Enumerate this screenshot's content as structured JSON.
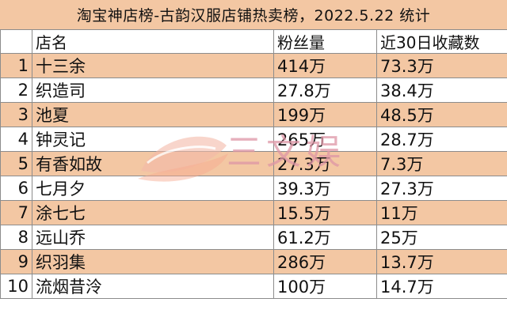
{
  "title": "淘宝神店榜-古韵汉服店铺热卖榜，2022.5.22 统计",
  "columns": [
    "",
    "店名",
    "粉丝量",
    "近30日收藏数"
  ],
  "rows": [
    {
      "rank": "1",
      "name": "十三余",
      "fans": "414万",
      "fav": "73.3万"
    },
    {
      "rank": "2",
      "name": "织造司",
      "fans": "27.8万",
      "fav": "38.4万"
    },
    {
      "rank": "3",
      "name": "池夏",
      "fans": "199万",
      "fav": "48.5万"
    },
    {
      "rank": "4",
      "name": "钟灵记",
      "fans": "265万",
      "fav": "28.7万"
    },
    {
      "rank": "5",
      "name": "有香如故",
      "fans": "27.3万",
      "fav": "7.3万"
    },
    {
      "rank": "6",
      "name": "七月夕",
      "fans": "39.3万",
      "fav": "27.3万"
    },
    {
      "rank": "7",
      "name": "涂七七",
      "fans": "15.5万",
      "fav": "11万"
    },
    {
      "rank": "8",
      "name": "远山乔",
      "fans": "61.2万",
      "fav": "25万"
    },
    {
      "rank": "9",
      "name": "织羽集",
      "fans": "286万",
      "fav": "13.7万"
    },
    {
      "rank": "10",
      "name": "流烟昔泠",
      "fans": "100万",
      "fav": "14.7万"
    }
  ],
  "watermark": {
    "text": "三文娱"
  },
  "colors": {
    "highlight_row": "#f3c7a3",
    "plain_row": "#ffffff",
    "grid": "#8c8c8c"
  }
}
